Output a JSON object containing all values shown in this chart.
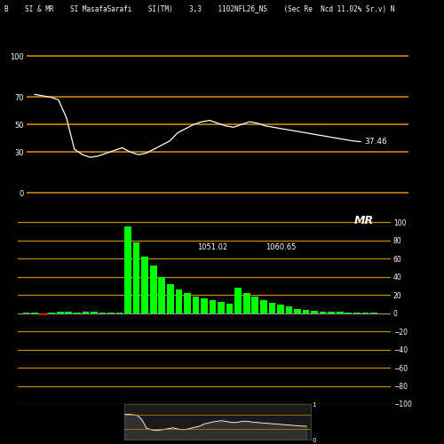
{
  "title_text": "B    SI & MR    SI MasafaSarafi    SI(TM)    3,3    1102NFL26_NS    (Sec Re  Ncd 11.02% Sr.v) N",
  "bg_color": "#000000",
  "orange_color": "#CC8800",
  "white_color": "#FFFFFF",
  "green_color": "#00FF00",
  "red_color": "#FF0000",
  "rsi_ylim": [
    -5,
    115
  ],
  "rsi_hlines": [
    0,
    30,
    50,
    70,
    100
  ],
  "rsi_yticks": [
    0,
    30,
    50,
    70,
    100
  ],
  "rsi_last_value": "37.46",
  "rsi_last_val_num": 37.46,
  "mrsi_ylim": [
    -100,
    110
  ],
  "mrsi_hlines": [
    -100,
    -80,
    -60,
    -40,
    -20,
    0,
    20,
    40,
    60,
    80,
    100
  ],
  "mrsi_yticks": [
    -100,
    -80,
    -60,
    -40,
    -20,
    0,
    20,
    40,
    60,
    80,
    100
  ],
  "mrsi_label1": "1051.02",
  "mrsi_label2": "1060.65",
  "mrsi_label_mr": "MR",
  "rsi_data": [
    72,
    71,
    70,
    68,
    55,
    32,
    28,
    26,
    27,
    29,
    31,
    33,
    30,
    28,
    29,
    32,
    35,
    38,
    44,
    47,
    50,
    52,
    53,
    51,
    49,
    48,
    50,
    52,
    51,
    49,
    48,
    47,
    46,
    45,
    44,
    43,
    42,
    41,
    40,
    39,
    38,
    37.46
  ],
  "mrsi_bar_data": [
    0.5,
    0.3,
    -2.5,
    0.8,
    1.2,
    1.8,
    0.6,
    1.5,
    1.2,
    1.0,
    0.8,
    0.5,
    95,
    78,
    62,
    52,
    40,
    32,
    26,
    22,
    18,
    16,
    14,
    12,
    10,
    28,
    22,
    18,
    14,
    11,
    9,
    7,
    5,
    4,
    3,
    2,
    2,
    1.5,
    1,
    0.8,
    0.4,
    0.3
  ],
  "mrsi_colors": [
    "#00FF00",
    "#00FF00",
    "#FF0000",
    "#00FF00",
    "#00FF00",
    "#00FF00",
    "#00FF00",
    "#00FF00",
    "#00FF00",
    "#00FF00",
    "#00FF00",
    "#00FF00",
    "#00FF00",
    "#00FF00",
    "#00FF00",
    "#00FF00",
    "#00FF00",
    "#00FF00",
    "#00FF00",
    "#00FF00",
    "#00FF00",
    "#00FF00",
    "#00FF00",
    "#00FF00",
    "#00FF00",
    "#00FF00",
    "#00FF00",
    "#00FF00",
    "#00FF00",
    "#00FF00",
    "#00FF00",
    "#00FF00",
    "#00FF00",
    "#00FF00",
    "#00FF00",
    "#00FF00",
    "#00FF00",
    "#00FF00",
    "#00FF00",
    "#00FF00",
    "#00FF00",
    "#00FF00"
  ]
}
